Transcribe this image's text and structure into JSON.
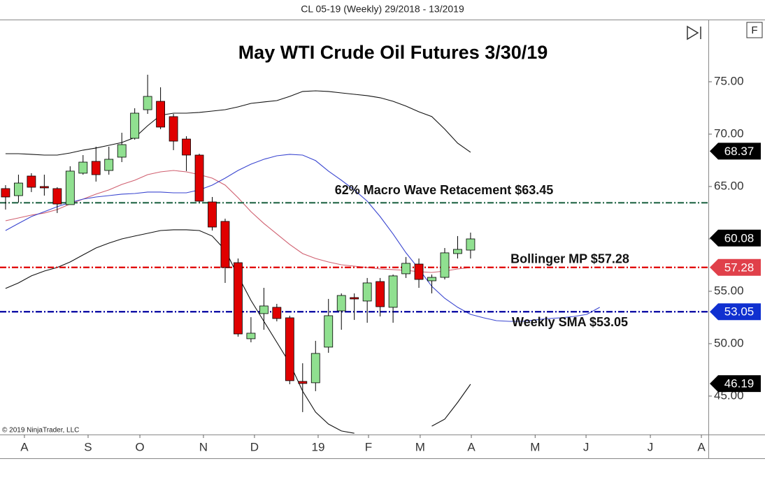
{
  "chart_data": {
    "type": "candlestick",
    "header": "CL 05-19 (Weekly)  29/2018 - 13/2019",
    "title": "May WTI Crude Oil Futures 3/30/19",
    "copyright": "© 2019 NinjaTrader, LLC",
    "corner_button": "F",
    "x": [
      0,
      1,
      2,
      3,
      4,
      5,
      6,
      7,
      8,
      9,
      10,
      11,
      12,
      13,
      14,
      15,
      16,
      17,
      18,
      19,
      20,
      21,
      22,
      23,
      24,
      25,
      26,
      27,
      28,
      29,
      30,
      31,
      32,
      33,
      34,
      35,
      36,
      37,
      38,
      39,
      40,
      41,
      42,
      43,
      44,
      45,
      46
    ],
    "open": [
      64.8,
      64.13,
      66.0,
      65.0,
      64.8,
      63.27,
      66.27,
      67.4,
      66.53,
      67.8,
      69.6,
      72.33,
      73.13,
      71.67,
      69.53,
      68.0,
      63.53,
      61.67,
      57.73,
      50.47,
      52.87,
      53.47,
      52.47,
      46.4,
      46.27,
      49.67,
      53.13,
      54.4,
      54.07,
      55.93,
      53.47,
      56.67,
      57.6,
      56.0,
      56.33,
      58.6,
      58.93,
      null,
      null,
      null,
      null,
      null,
      null,
      null,
      null,
      null,
      null
    ],
    "high": [
      65.13,
      66.13,
      66.27,
      66.13,
      64.93,
      66.93,
      68.0,
      68.8,
      68.8,
      70.13,
      72.47,
      75.67,
      74.47,
      71.93,
      69.8,
      68.13,
      64.0,
      61.93,
      58.13,
      52.53,
      55.33,
      53.8,
      52.67,
      48.13,
      50.27,
      54.27,
      54.8,
      54.8,
      56.27,
      56.27,
      56.6,
      58.27,
      58.13,
      56.6,
      59.13,
      60.27,
      60.6,
      null,
      null,
      null,
      null,
      null,
      null,
      null,
      null,
      null,
      null
    ],
    "low": [
      62.8,
      63.47,
      64.47,
      64.13,
      62.47,
      63.27,
      66.13,
      65.47,
      66.13,
      67.33,
      69.47,
      71.93,
      70.47,
      68.47,
      66.47,
      63.47,
      60.8,
      55.8,
      50.67,
      50.13,
      51.33,
      52.13,
      46.13,
      43.47,
      45.47,
      49.13,
      51.33,
      52.27,
      52.0,
      52.6,
      52.0,
      56.27,
      55.33,
      54.8,
      56.13,
      58.13,
      58.13,
      null,
      null,
      null,
      null,
      null,
      null,
      null,
      null,
      null,
      null
    ],
    "close": [
      64.0,
      65.33,
      64.93,
      64.87,
      63.33,
      66.47,
      67.33,
      66.13,
      67.6,
      69.0,
      72.0,
      73.6,
      70.67,
      69.33,
      68.0,
      63.6,
      61.13,
      57.27,
      50.93,
      51.0,
      53.6,
      52.4,
      46.47,
      46.2,
      49.07,
      52.67,
      54.6,
      54.33,
      55.8,
      53.53,
      56.47,
      57.67,
      56.13,
      56.33,
      58.67,
      59.0,
      60.0,
      null,
      null,
      null,
      null,
      null,
      null,
      null,
      null,
      null,
      null
    ],
    "up_color": "#90e090",
    "down_color": "#e00000",
    "lines": [
      {
        "color": "#111111",
        "values": [
          68.13,
          68.13,
          68.07,
          68.0,
          68.0,
          68.2,
          68.47,
          68.67,
          68.93,
          69.2,
          69.67,
          70.8,
          71.8,
          72.0,
          72.0,
          72.07,
          72.2,
          72.33,
          72.6,
          72.93,
          73.07,
          73.2,
          73.6,
          74.07,
          74.13,
          74.07,
          73.93,
          73.8,
          73.67,
          73.47,
          73.13,
          72.67,
          72.13,
          71.67,
          70.47,
          69.13,
          68.27,
          null,
          null,
          null,
          null,
          null,
          null,
          null,
          null,
          null,
          null
        ]
      },
      {
        "color": "#111111",
        "values": [
          55.27,
          55.8,
          56.47,
          56.93,
          57.27,
          57.8,
          58.47,
          59.13,
          59.6,
          60.0,
          60.27,
          60.53,
          60.8,
          60.87,
          60.87,
          60.8,
          60.27,
          58.93,
          56.47,
          54.13,
          52.13,
          50.13,
          48.13,
          45.47,
          43.47,
          42.33,
          41.67,
          41.45,
          null,
          null,
          null,
          null,
          null,
          42.13,
          42.8,
          44.4,
          46.13,
          null,
          null,
          null,
          null,
          null,
          null,
          null,
          null,
          null,
          null
        ]
      },
      {
        "color": "#d06070",
        "values": [
          61.73,
          62.0,
          62.27,
          62.47,
          62.8,
          63.33,
          63.8,
          64.27,
          64.67,
          65.2,
          65.6,
          66.13,
          66.4,
          66.53,
          66.4,
          66.13,
          65.8,
          65.13,
          63.93,
          62.6,
          61.47,
          60.47,
          59.47,
          58.6,
          58.13,
          57.8,
          57.53,
          57.4,
          57.27,
          57.13,
          57.07,
          57.0,
          56.87,
          56.8,
          56.93,
          57.13,
          57.27,
          null,
          null,
          null,
          null,
          null,
          null,
          null,
          null,
          null,
          null
        ]
      },
      {
        "color": "#3a46d0",
        "values": [
          60.8,
          61.47,
          62.13,
          62.6,
          63.07,
          63.47,
          63.8,
          64.0,
          64.13,
          64.27,
          64.33,
          64.47,
          64.47,
          64.4,
          64.4,
          64.67,
          65.13,
          65.8,
          66.53,
          67.13,
          67.6,
          67.93,
          68.07,
          68.0,
          67.47,
          66.47,
          65.6,
          64.67,
          63.6,
          62.13,
          60.47,
          58.67,
          57.13,
          55.47,
          54.33,
          53.47,
          52.8,
          52.47,
          52.2,
          52.13,
          52.13,
          52.27,
          52.4,
          52.47,
          52.6,
          52.8,
          53.47
        ]
      }
    ],
    "levels": [
      {
        "value": 63.45,
        "label": "62% Macro Wave Retacement $63.45",
        "color": "#2e6e50"
      },
      {
        "value": 57.28,
        "label": "Bollinger MP $57.28",
        "color": "#e00000"
      },
      {
        "value": 53.05,
        "label": "Weekly SMA $53.05",
        "color": "#0000a0"
      }
    ],
    "price_badges": [
      {
        "value": 68.37,
        "color": "#000000"
      },
      {
        "value": 60.08,
        "color": "#000000"
      },
      {
        "value": 57.28,
        "color": "#e0404a"
      },
      {
        "value": 53.05,
        "color": "#1030d0"
      },
      {
        "value": 46.19,
        "color": "#000000"
      }
    ],
    "xlim": [
      -0.43,
      54.41
    ],
    "xticks": [
      {
        "value": 1.46,
        "label": "A"
      },
      {
        "value": 6.39,
        "label": "S"
      },
      {
        "value": 10.4,
        "label": "O"
      },
      {
        "value": 15.32,
        "label": "N"
      },
      {
        "value": 19.27,
        "label": "D"
      },
      {
        "value": 24.2,
        "label": "19"
      },
      {
        "value": 28.1,
        "label": "F"
      },
      {
        "value": 32.1,
        "label": "M"
      },
      {
        "value": 36.06,
        "label": "A"
      },
      {
        "value": 41.0,
        "label": "M"
      },
      {
        "value": 44.94,
        "label": "J"
      },
      {
        "value": 49.92,
        "label": "J"
      },
      {
        "value": 53.87,
        "label": "A"
      }
    ],
    "ylim": [
      41.33,
      80.8
    ],
    "yticks": [
      {
        "value": 45,
        "label": "45.00"
      },
      {
        "value": 50,
        "label": "50.00"
      },
      {
        "value": 55,
        "label": "55.00"
      },
      {
        "value": 60,
        "label": "60.00"
      },
      {
        "value": 65,
        "label": "65.00"
      },
      {
        "value": 70,
        "label": "70.00"
      },
      {
        "value": 75,
        "label": "75.00"
      }
    ]
  }
}
